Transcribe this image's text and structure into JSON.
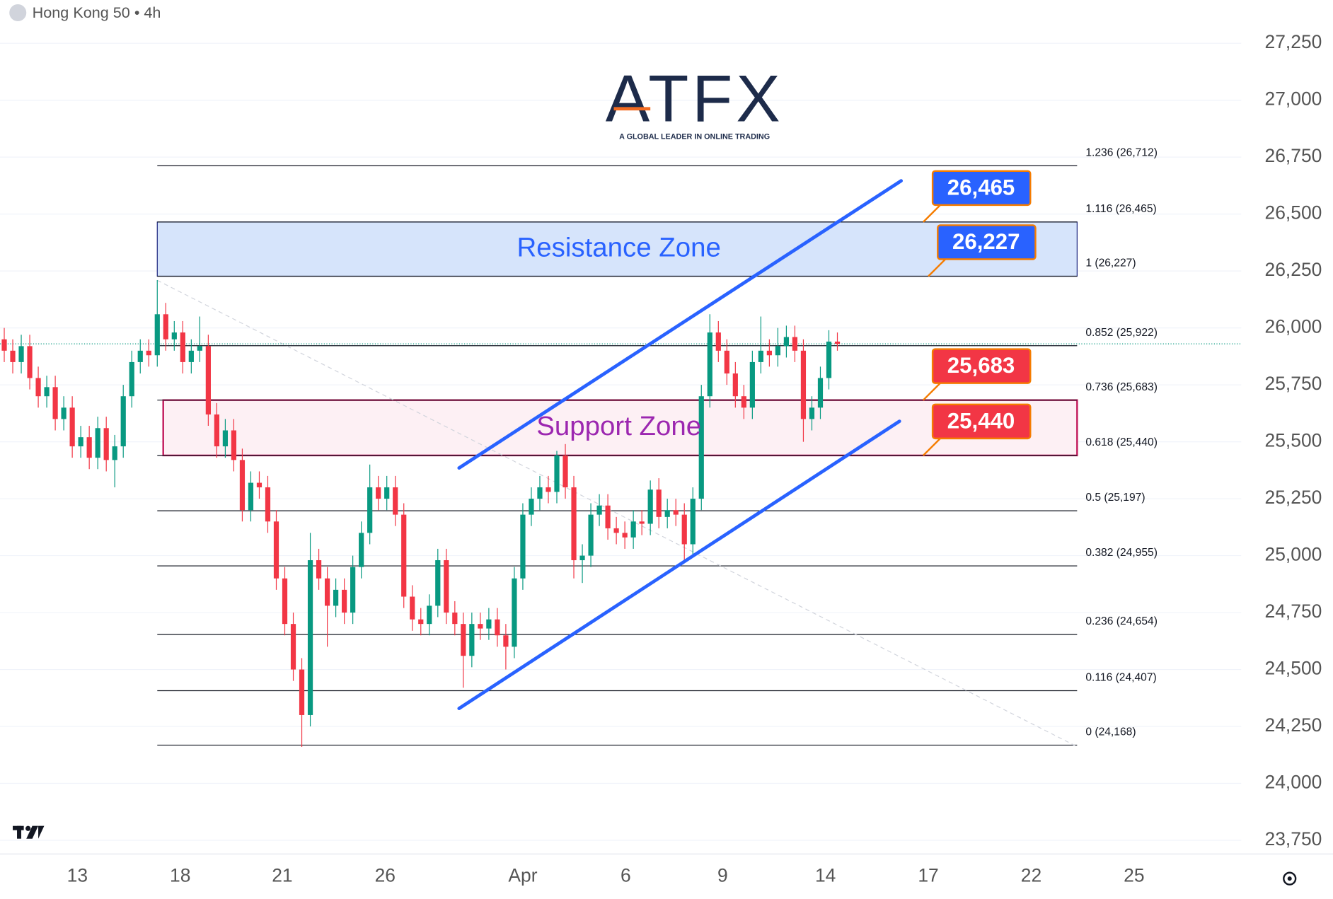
{
  "chart_data": {
    "type": "candlestick",
    "title": "Hong Kong 50 • 4h",
    "watermark": {
      "name": "ATFX",
      "tagline": "A GLOBAL LEADER IN ONLINE TRADING"
    },
    "up_color": "#089981",
    "down_color": "#f23645",
    "grid": true,
    "ylim": [
      23690,
      27440
    ],
    "yticks": [
      {
        "value": 23750,
        "label": "23,750"
      },
      {
        "value": 24000,
        "label": "24,000"
      },
      {
        "value": 24250,
        "label": "24,250"
      },
      {
        "value": 24500,
        "label": "24,500"
      },
      {
        "value": 24750,
        "label": "24,750"
      },
      {
        "value": 25000,
        "label": "25,000"
      },
      {
        "value": 25250,
        "label": "25,250"
      },
      {
        "value": 25500,
        "label": "25,500"
      },
      {
        "value": 25750,
        "label": "25,750"
      },
      {
        "value": 26000,
        "label": "26,000"
      },
      {
        "value": 26250,
        "label": "26,250"
      },
      {
        "value": 26500,
        "label": "26,500"
      },
      {
        "value": 26750,
        "label": "26,750"
      },
      {
        "value": 27000,
        "label": "27,000"
      },
      {
        "value": 27250,
        "label": "27,250"
      }
    ],
    "xlim": [
      0,
      146
    ],
    "xticks": [
      {
        "value": 9.1,
        "label": "13"
      },
      {
        "value": 21.2,
        "label": "18"
      },
      {
        "value": 33.2,
        "label": "21"
      },
      {
        "value": 45.3,
        "label": "26"
      },
      {
        "value": 61.5,
        "label": "Apr"
      },
      {
        "value": 73.6,
        "label": "6"
      },
      {
        "value": 85,
        "label": "9"
      },
      {
        "value": 97.1,
        "label": "14"
      },
      {
        "value": 109.2,
        "label": "17"
      },
      {
        "value": 121.3,
        "label": "22"
      },
      {
        "value": 133.4,
        "label": "25"
      }
    ],
    "x": [
      0.5,
      1.5,
      2.5,
      3.5,
      4.5,
      5.5,
      6.5,
      7.5,
      8.5,
      9.5,
      10.5,
      11.5,
      12.5,
      13.5,
      14.5,
      15.5,
      16.5,
      17.5,
      18.5,
      19.5,
      20.5,
      21.5,
      22.5,
      23.5,
      24.5,
      25.5,
      26.5,
      27.5,
      28.5,
      29.5,
      30.5,
      31.5,
      32.5,
      33.5,
      34.5,
      35.5,
      36.5,
      37.5,
      38.5,
      39.5,
      40.5,
      41.5,
      42.5,
      43.5,
      44.5,
      45.5,
      46.5,
      47.5,
      48.5,
      49.5,
      50.5,
      51.5,
      52.5,
      53.5,
      54.5,
      55.5,
      56.5,
      57.5,
      58.5,
      59.5,
      60.5,
      61.5,
      62.5,
      63.5,
      64.5,
      65.5,
      66.5,
      67.5,
      68.5,
      69.5,
      70.5,
      71.5,
      72.5,
      73.5,
      74.5,
      75.5,
      76.5,
      77.5,
      78.5,
      79.5,
      80.5,
      81.5,
      82.5,
      83.5,
      84.5,
      85.5,
      86.5,
      87.5,
      88.5,
      89.5,
      90.5,
      91.5,
      92.5,
      93.5,
      94.5,
      95.5,
      96.5,
      97.5,
      98.5
    ],
    "open": [
      25950,
      25900,
      25850,
      25920,
      25780,
      25700,
      25740,
      25600,
      25650,
      25480,
      25520,
      25430,
      25560,
      25420,
      25480,
      25700,
      25850,
      25900,
      25880,
      26060,
      25950,
      25980,
      25850,
      25900,
      25920,
      25620,
      25480,
      25550,
      25420,
      25200,
      25320,
      25300,
      25150,
      24900,
      24700,
      24500,
      24300,
      24980,
      24900,
      24780,
      24850,
      24750,
      24950,
      25100,
      25300,
      25250,
      25300,
      25180,
      24820,
      24720,
      24700,
      24780,
      24980,
      24750,
      24700,
      24560,
      24700,
      24680,
      24720,
      24650,
      24600,
      24900,
      25180,
      25250,
      25300,
      25280,
      25440,
      25300,
      24980,
      25000,
      25180,
      25220,
      25120,
      25100,
      25080,
      25150,
      25140,
      25290,
      25170,
      25200,
      25180,
      25050,
      25250,
      25700,
      25980,
      25900,
      25800,
      25700,
      25650,
      25850,
      25900,
      25880,
      25920,
      25960,
      25900,
      25600,
      25650,
      25780,
      25940
    ],
    "high": [
      26000,
      25950,
      25970,
      25970,
      25830,
      25790,
      25790,
      25700,
      25700,
      25570,
      25570,
      25610,
      25610,
      25530,
      25750,
      25900,
      25950,
      25950,
      26210,
      26110,
      26030,
      26030,
      25950,
      26050,
      25970,
      25670,
      25600,
      25600,
      25470,
      25370,
      25370,
      25350,
      25200,
      24950,
      24750,
      24550,
      25100,
      25030,
      24950,
      24900,
      24900,
      25000,
      25150,
      25400,
      25350,
      25350,
      25350,
      25230,
      24870,
      24770,
      24830,
      25030,
      25030,
      24800,
      24750,
      24750,
      24750,
      24770,
      24770,
      24700,
      24950,
      25230,
      25300,
      25350,
      25350,
      25460,
      25490,
      25350,
      25050,
      25230,
      25270,
      25270,
      25170,
      25150,
      25200,
      25200,
      25330,
      25340,
      25250,
      25250,
      25230,
      25300,
      25750,
      26060,
      26030,
      25950,
      25850,
      25750,
      25900,
      26050,
      25950,
      26000,
      26010,
      26010,
      25950,
      25700,
      25830,
      25990,
      25980
    ],
    "low": [
      25850,
      25800,
      25800,
      25730,
      25650,
      25650,
      25550,
      25550,
      25430,
      25430,
      25380,
      25380,
      25370,
      25300,
      25430,
      25650,
      25800,
      25830,
      25830,
      25900,
      25900,
      25800,
      25800,
      25850,
      25570,
      25430,
      25430,
      25370,
      25150,
      25150,
      25250,
      25100,
      24850,
      24650,
      24450,
      24160,
      24250,
      24850,
      24600,
      24730,
      24700,
      24700,
      24900,
      25050,
      25200,
      25200,
      25130,
      24770,
      24670,
      24650,
      24650,
      24730,
      24700,
      24650,
      24420,
      24510,
      24630,
      24630,
      24600,
      24500,
      24550,
      24850,
      25130,
      25200,
      25230,
      25230,
      25250,
      24900,
      24880,
      24950,
      25130,
      25070,
      25050,
      25030,
      25030,
      25090,
      25090,
      25120,
      25120,
      25130,
      24980,
      25000,
      25200,
      25650,
      25850,
      25750,
      25650,
      25600,
      25600,
      25800,
      25830,
      25830,
      25870,
      25850,
      25500,
      25550,
      25600,
      25730,
      25900
    ],
    "close": [
      25900,
      25850,
      25920,
      25780,
      25700,
      25740,
      25600,
      25650,
      25480,
      25520,
      25430,
      25560,
      25420,
      25480,
      25700,
      25850,
      25900,
      25880,
      26060,
      25950,
      25980,
      25850,
      25900,
      25920,
      25620,
      25480,
      25550,
      25420,
      25200,
      25320,
      25300,
      25150,
      24900,
      24700,
      24500,
      24300,
      24980,
      24900,
      24780,
      24850,
      24750,
      24950,
      25100,
      25300,
      25250,
      25300,
      25180,
      24820,
      24720,
      24700,
      24780,
      24980,
      24750,
      24700,
      24560,
      24700,
      24680,
      24720,
      24650,
      24600,
      24900,
      25180,
      25250,
      25300,
      25280,
      25440,
      25300,
      24980,
      25000,
      25180,
      25220,
      25120,
      25100,
      25080,
      25150,
      25140,
      25290,
      25170,
      25200,
      25180,
      25050,
      25250,
      25700,
      25980,
      25900,
      25800,
      25700,
      25650,
      25850,
      25900,
      25880,
      25920,
      25960,
      25900,
      25600,
      25650,
      25780,
      25940,
      25930
    ],
    "fib_range": [
      18.5,
      126.7
    ],
    "fib_levels": [
      {
        "value": 26712,
        "label": "1.236 (26,712)"
      },
      {
        "value": 26465,
        "label": "1.116 (26,465)"
      },
      {
        "value": 26227,
        "label": "1 (26,227)"
      },
      {
        "value": 25922,
        "label": "0.852 (25,922)"
      },
      {
        "value": 25683,
        "label": "0.736 (25,683)"
      },
      {
        "value": 25440,
        "label": "0.618 (25,440)"
      },
      {
        "value": 25197,
        "label": "0.5 (25,197)"
      },
      {
        "value": 24955,
        "label": "0.382 (24,955)"
      },
      {
        "value": 24654,
        "label": "0.236 (24,654)"
      },
      {
        "value": 24407,
        "label": "0.116 (24,407)"
      },
      {
        "value": 24168,
        "label": "0 (24,168)"
      }
    ],
    "zones": [
      {
        "label": "Resistance Zone",
        "range": [
          26227,
          26465
        ],
        "fill": "#d6e4fb",
        "border": "#1a237e",
        "text_color": "#2962ff"
      },
      {
        "label": "Support Zone",
        "range": [
          25440,
          25683
        ],
        "fill": "#fdf0f4",
        "border": "#c2185b",
        "text_color": "#9c27b0"
      }
    ],
    "channel": {
      "color": "#2962ff",
      "lines": [
        {
          "x": [
            54,
            106
          ],
          "y": [
            25385,
            26646
          ]
        },
        {
          "x": [
            54,
            105.8
          ],
          "y": [
            24329,
            25590
          ]
        }
      ]
    },
    "trendline": {
      "x": [
        18.5,
        126.5
      ],
      "y": [
        26209,
        24165
      ]
    },
    "callouts": [
      {
        "value": 26465,
        "label": "26,465",
        "color": "#2962ff"
      },
      {
        "value": 26227,
        "label": "26,227",
        "color": "#2962ff"
      },
      {
        "value": 25683,
        "label": "25,683",
        "color": "#f23645"
      },
      {
        "value": 25440,
        "label": "25,440",
        "color": "#f23645"
      }
    ]
  }
}
